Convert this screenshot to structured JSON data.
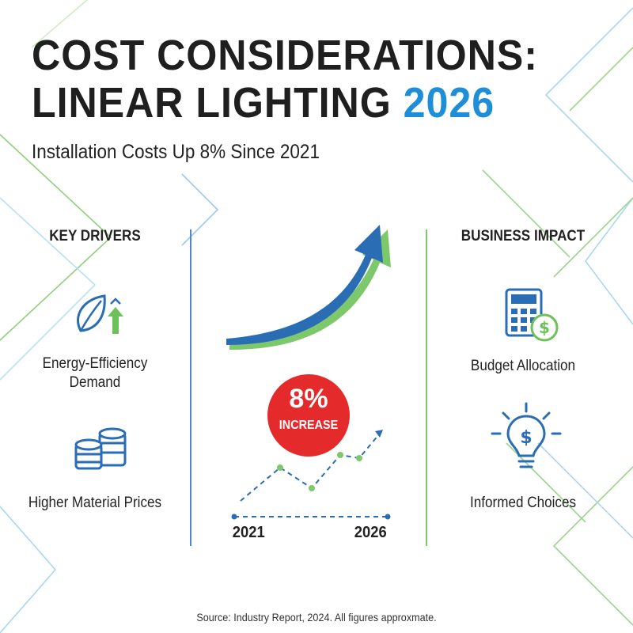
{
  "header": {
    "title_line1": "COST CONSIDERATIONS:",
    "title_line2_main": "LINEAR LIGHTING",
    "title_line2_year": "2026",
    "subtitle": "Installation Costs Up 8% Since 2021"
  },
  "colors": {
    "accent_blue": "#1e8ed8",
    "arrow_blue": "#2a6db5",
    "accent_green": "#7cc86a",
    "badge_red": "#e52a2c"
  },
  "key_drivers": {
    "heading": "KEY DRIVERS",
    "items": [
      {
        "icon": "leaf-up-arrow-icon",
        "label_line1": "Energy-Efficiency",
        "label_line2": "Demand"
      },
      {
        "icon": "coin-stacks-icon",
        "label": "Higher Material Prices"
      }
    ]
  },
  "center": {
    "increase_value": "8%",
    "increase_label": "INCREASE",
    "start_year": "2021",
    "end_year": "2026"
  },
  "business_impact": {
    "heading": "BUSINESS IMPACT",
    "items": [
      {
        "icon": "calculator-dollar-icon",
        "label": "Budget Allocation"
      },
      {
        "icon": "lightbulb-dollar-icon",
        "label": "Informed Choices"
      }
    ]
  },
  "footer": {
    "source": "Source: Industry Report, 2024. All figures approxmate."
  }
}
